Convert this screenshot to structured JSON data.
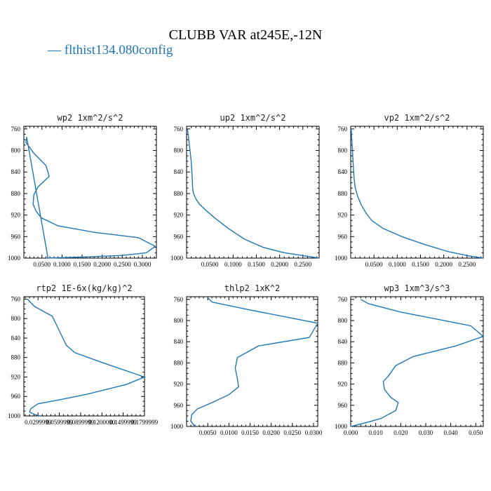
{
  "title": "CLUBB VAR at245E,-12N",
  "legend": {
    "label": "— flthist134.080config",
    "color": "#1f77b4"
  },
  "series_color": "#1f77b4",
  "chart_data": [
    {
      "type": "line",
      "title": "wp2  1xm^2/s^2",
      "y_ticks": [
        760,
        800,
        840,
        880,
        920,
        960,
        1000
      ],
      "y_range": [
        1000,
        755
      ],
      "x_range": [
        0.005,
        0.335
      ],
      "x_ticks": [
        0.05,
        0.1,
        0.15,
        0.2,
        0.25,
        0.3
      ],
      "x_tick_labels": [
        "0.0500",
        "0.1000",
        "0.1500",
        "0.2000",
        "0.2500",
        "0.3000"
      ],
      "x": [
        0.065,
        0.012,
        0.01,
        0.03,
        0.06,
        0.068,
        0.04,
        0.03,
        0.028,
        0.035,
        0.048,
        0.09,
        0.18,
        0.29,
        0.332,
        0.31,
        0.25,
        0.15,
        0.06
      ],
      "y": [
        1000,
        775,
        785,
        805,
        828,
        848,
        868,
        882,
        900,
        912,
        925,
        940,
        952,
        962,
        978,
        990,
        995,
        998,
        1000
      ]
    },
    {
      "type": "line",
      "title": "up2  1xm^2/s^2",
      "y_ticks": [
        760,
        800,
        840,
        880,
        920,
        960,
        1000
      ],
      "y_range": [
        1000,
        755
      ],
      "x_range": [
        0.0,
        0.285
      ],
      "x_ticks": [
        0.05,
        0.1,
        0.15,
        0.2,
        0.25
      ],
      "x_tick_labels": [
        "0.0500",
        "0.1000",
        "0.1500",
        "0.2000",
        "0.2500"
      ],
      "x": [
        0.002,
        0.006,
        0.01,
        0.012,
        0.013,
        0.015,
        0.02,
        0.028,
        0.04,
        0.06,
        0.09,
        0.125,
        0.165,
        0.21,
        0.255,
        0.285
      ],
      "y": [
        760,
        790,
        820,
        850,
        870,
        880,
        890,
        900,
        910,
        925,
        945,
        965,
        980,
        990,
        996,
        1000
      ]
    },
    {
      "type": "line",
      "title": "vp2  1xm^2/s^2",
      "y_ticks": [
        760,
        800,
        840,
        880,
        920,
        960,
        1000
      ],
      "y_range": [
        1000,
        755
      ],
      "x_range": [
        0.0,
        0.285
      ],
      "x_ticks": [
        0.05,
        0.1,
        0.15,
        0.2,
        0.25
      ],
      "x_tick_labels": [
        "0.0500",
        "0.1000",
        "0.1500",
        "0.2000",
        "0.2500"
      ],
      "x": [
        0.001,
        0.003,
        0.005,
        0.007,
        0.01,
        0.015,
        0.022,
        0.032,
        0.045,
        0.07,
        0.11,
        0.16,
        0.21,
        0.255,
        0.285
      ],
      "y": [
        760,
        790,
        820,
        850,
        870,
        885,
        900,
        915,
        930,
        945,
        960,
        975,
        988,
        996,
        1000
      ]
    },
    {
      "type": "line",
      "title": "rtp2  1E-6x(kg/kg)^2",
      "y_ticks": [
        760,
        800,
        840,
        880,
        920,
        960,
        1000
      ],
      "y_range": [
        1000,
        755
      ],
      "x_range": [
        0.01,
        0.18
      ],
      "x_ticks": [
        0.03,
        0.06,
        0.09,
        0.12,
        0.15,
        0.18
      ],
      "x_tick_labels": [
        "0.0299999",
        "0.0599999",
        "0.0899999",
        "0.1200000",
        "0.1499999",
        "0.1799999"
      ],
      "x": [
        0.015,
        0.025,
        0.05,
        0.065,
        0.07,
        0.082,
        0.12,
        0.16,
        0.18,
        0.155,
        0.1,
        0.06,
        0.03,
        0.02,
        0.018,
        0.025,
        0.033
      ],
      "y": [
        760,
        775,
        795,
        840,
        855,
        870,
        890,
        910,
        920,
        935,
        955,
        967,
        975,
        985,
        992,
        997,
        1000
      ]
    },
    {
      "type": "line",
      "title": "thlp2  1xK^2",
      "y_ticks": [
        760,
        800,
        840,
        880,
        920,
        960,
        1000
      ],
      "y_range": [
        1000,
        755
      ],
      "x_range": [
        0.0,
        0.031
      ],
      "x_ticks": [
        0.005,
        0.01,
        0.015,
        0.02,
        0.025,
        0.03
      ],
      "x_tick_labels": [
        "0.0050",
        "0.0100",
        "0.0150",
        "0.0200",
        "0.0250",
        "0.0300"
      ],
      "x": [
        0.005,
        0.006,
        0.015,
        0.031,
        0.029,
        0.017,
        0.012,
        0.0115,
        0.012,
        0.0123,
        0.01,
        0.006,
        0.0025,
        0.0012,
        0.001,
        0.002
      ],
      "y": [
        757,
        765,
        780,
        805,
        832,
        848,
        870,
        890,
        910,
        925,
        940,
        955,
        967,
        978,
        990,
        1000
      ]
    },
    {
      "type": "line",
      "title": "wp3  1xm^3/s^3",
      "y_ticks": [
        760,
        800,
        840,
        880,
        920,
        960,
        1000
      ],
      "y_range": [
        1000,
        755
      ],
      "x_range": [
        0.0,
        0.053
      ],
      "x_ticks": [
        0.0,
        0.01,
        0.02,
        0.03,
        0.04,
        0.05
      ],
      "x_tick_labels": [
        "0.000",
        "0.010",
        "0.020",
        "0.030",
        "0.040",
        "0.050"
      ],
      "x": [
        0.004,
        0.007,
        0.02,
        0.048,
        0.053,
        0.042,
        0.025,
        0.018,
        0.015,
        0.013,
        0.0135,
        0.016,
        0.019,
        0.018,
        0.012,
        0.006,
        0.0
      ],
      "y": [
        760,
        768,
        784,
        810,
        830,
        848,
        868,
        885,
        905,
        915,
        930,
        945,
        955,
        970,
        985,
        993,
        1000
      ]
    }
  ]
}
